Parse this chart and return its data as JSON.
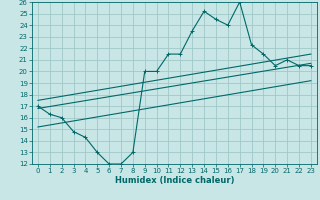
{
  "background_color": "#c8e6e6",
  "grid_color": "#a0c8c8",
  "line_color": "#006868",
  "xlabel": "Humidex (Indice chaleur)",
  "xlim": [
    -0.5,
    23.5
  ],
  "ylim": [
    12,
    26
  ],
  "xticks": [
    0,
    1,
    2,
    3,
    4,
    5,
    6,
    7,
    8,
    9,
    10,
    11,
    12,
    13,
    14,
    15,
    16,
    17,
    18,
    19,
    20,
    21,
    22,
    23
  ],
  "yticks": [
    12,
    13,
    14,
    15,
    16,
    17,
    18,
    19,
    20,
    21,
    22,
    23,
    24,
    25,
    26
  ],
  "curve1_x": [
    0,
    1,
    2,
    3,
    4,
    5,
    6,
    7,
    8,
    9,
    10,
    11,
    12,
    13,
    14,
    15,
    16,
    17,
    18,
    19,
    20,
    21,
    22,
    23
  ],
  "curve1_y": [
    17.0,
    16.3,
    16.0,
    14.8,
    14.3,
    13.0,
    12.0,
    12.0,
    13.0,
    20.0,
    20.0,
    21.5,
    21.5,
    23.5,
    25.2,
    24.5,
    24.0,
    26.0,
    22.3,
    21.5,
    20.5,
    21.0,
    20.5,
    20.5
  ],
  "line1_x": [
    0,
    23
  ],
  "line1_y": [
    15.2,
    19.2
  ],
  "line2_x": [
    0,
    23
  ],
  "line2_y": [
    16.8,
    20.7
  ],
  "line3_x": [
    0,
    23
  ],
  "line3_y": [
    17.5,
    21.5
  ]
}
